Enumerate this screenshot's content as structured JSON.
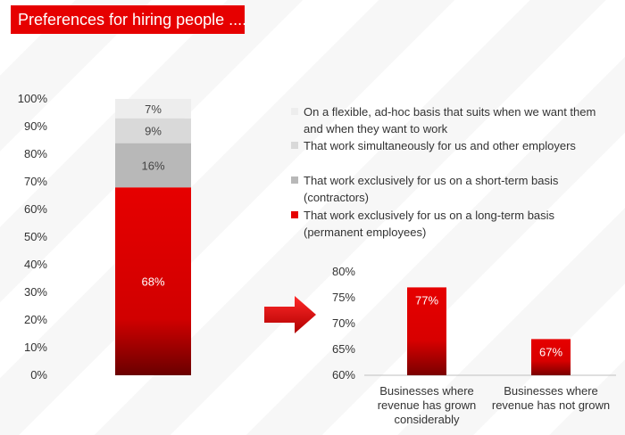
{
  "title": "Preferences for hiring people ....",
  "colors": {
    "brand_red": "#e60000",
    "dark_red": "#6a0000",
    "grey_mid": "#b8b8b8",
    "grey_light": "#d9d9d9",
    "grey_lighter": "#ededed"
  },
  "legend": [
    {
      "label": "On a flexible, ad-hoc basis that suits when we want them and when they want to work",
      "color": "#ededed"
    },
    {
      "label": "That work simultaneously for us and other employers",
      "color": "#d9d9d9"
    },
    {
      "label": "That work exclusively for us on a short-term basis (contractors)",
      "color": "#b8b8b8"
    },
    {
      "label": "That work exclusively for us on a long-term basis (permanent employees)",
      "color": "#e60000"
    }
  ],
  "arrow_icon": "right-arrow-icon",
  "chart_data": [
    {
      "type": "bar",
      "stacked": true,
      "categories": [
        ""
      ],
      "series": [
        {
          "name": "That work exclusively for us on a long-term basis (permanent employees)",
          "values": [
            68
          ],
          "label": "68%"
        },
        {
          "name": "That work exclusively for us on a short-term basis (contractors)",
          "values": [
            16
          ],
          "label": "16%"
        },
        {
          "name": "That work simultaneously for us and other employers",
          "values": [
            9
          ],
          "label": "9%"
        },
        {
          "name": "On a flexible, ad-hoc basis that suits when we want them and when they want to work",
          "values": [
            7
          ],
          "label": "7%"
        }
      ],
      "ylim": [
        0,
        100
      ],
      "yticks": [
        "0%",
        "10%",
        "20%",
        "30%",
        "40%",
        "50%",
        "60%",
        "70%",
        "80%",
        "90%",
        "100%"
      ],
      "grid": false
    },
    {
      "type": "bar",
      "categories": [
        [
          "Businesses where",
          "revenue has grown",
          "considerably"
        ],
        [
          "Businesses where",
          "revenue has not grown"
        ]
      ],
      "values": [
        77,
        67
      ],
      "value_labels": [
        "77%",
        "67%"
      ],
      "ylim": [
        60,
        80
      ],
      "yticks": [
        "60%",
        "65%",
        "70%",
        "75%",
        "80%"
      ],
      "grid": false
    }
  ]
}
